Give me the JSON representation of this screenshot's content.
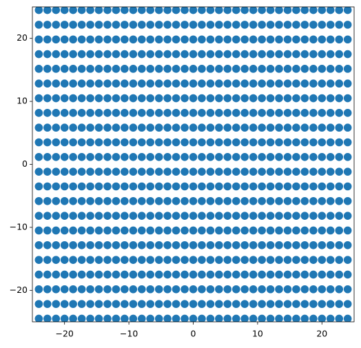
{
  "chart_data": {
    "type": "scatter",
    "color": "#1f77b4",
    "x": [
      -24,
      -22.67,
      -21.33,
      -20,
      -18.67,
      -17.33,
      -16,
      -14.67,
      -13.33,
      -12,
      -10.67,
      -9.33,
      -8,
      -6.67,
      -5.33,
      -4,
      -2.67,
      -1.33,
      0,
      1.33,
      2.67,
      4,
      5.33,
      6.67,
      8,
      9.33,
      10.67,
      12,
      13.33,
      14.67,
      16,
      17.33,
      18.67,
      20,
      21.33,
      22.67,
      24
    ],
    "series": [
      {
        "values": [
          -24.5,
          -24.5,
          -24.5,
          -24.5,
          -24.5,
          -24.5,
          -24.5,
          -24.5,
          -24.5,
          -24.5,
          -24.5,
          -24.5,
          -24.5,
          -24.5,
          -24.5,
          -24.5,
          -24.5,
          -24.5,
          -24.5,
          -24.5,
          -24.5,
          -24.5,
          -24.5,
          -24.5,
          -24.5,
          -24.5,
          -24.5,
          -24.5,
          -24.5,
          -24.5,
          -24.5,
          -24.5,
          -24.5,
          -24.5,
          -24.5,
          -24.5,
          -24.5
        ]
      },
      {
        "values": [
          -22.17,
          -22.17,
          -22.17,
          -22.17,
          -22.17,
          -22.17,
          -22.17,
          -22.17,
          -22.17,
          -22.17,
          -22.17,
          -22.17,
          -22.17,
          -22.17,
          -22.17,
          -22.17,
          -22.17,
          -22.17,
          -22.17,
          -22.17,
          -22.17,
          -22.17,
          -22.17,
          -22.17,
          -22.17,
          -22.17,
          -22.17,
          -22.17,
          -22.17,
          -22.17,
          -22.17,
          -22.17,
          -22.17,
          -22.17,
          -22.17,
          -22.17,
          -22.17
        ]
      },
      {
        "values": [
          -19.83,
          -19.83,
          -19.83,
          -19.83,
          -19.83,
          -19.83,
          -19.83,
          -19.83,
          -19.83,
          -19.83,
          -19.83,
          -19.83,
          -19.83,
          -19.83,
          -19.83,
          -19.83,
          -19.83,
          -19.83,
          -19.83,
          -19.83,
          -19.83,
          -19.83,
          -19.83,
          -19.83,
          -19.83,
          -19.83,
          -19.83,
          -19.83,
          -19.83,
          -19.83,
          -19.83,
          -19.83,
          -19.83,
          -19.83,
          -19.83,
          -19.83,
          -19.83
        ]
      },
      {
        "values": [
          -17.5,
          -17.5,
          -17.5,
          -17.5,
          -17.5,
          -17.5,
          -17.5,
          -17.5,
          -17.5,
          -17.5,
          -17.5,
          -17.5,
          -17.5,
          -17.5,
          -17.5,
          -17.5,
          -17.5,
          -17.5,
          -17.5,
          -17.5,
          -17.5,
          -17.5,
          -17.5,
          -17.5,
          -17.5,
          -17.5,
          -17.5,
          -17.5,
          -17.5,
          -17.5,
          -17.5,
          -17.5,
          -17.5,
          -17.5,
          -17.5,
          -17.5,
          -17.5
        ]
      },
      {
        "values": [
          -15.17,
          -15.17,
          -15.17,
          -15.17,
          -15.17,
          -15.17,
          -15.17,
          -15.17,
          -15.17,
          -15.17,
          -15.17,
          -15.17,
          -15.17,
          -15.17,
          -15.17,
          -15.17,
          -15.17,
          -15.17,
          -15.17,
          -15.17,
          -15.17,
          -15.17,
          -15.17,
          -15.17,
          -15.17,
          -15.17,
          -15.17,
          -15.17,
          -15.17,
          -15.17,
          -15.17,
          -15.17,
          -15.17,
          -15.17,
          -15.17,
          -15.17,
          -15.17
        ]
      },
      {
        "values": [
          -12.83,
          -12.83,
          -12.83,
          -12.83,
          -12.83,
          -12.83,
          -12.83,
          -12.83,
          -12.83,
          -12.83,
          -12.83,
          -12.83,
          -12.83,
          -12.83,
          -12.83,
          -12.83,
          -12.83,
          -12.83,
          -12.83,
          -12.83,
          -12.83,
          -12.83,
          -12.83,
          -12.83,
          -12.83,
          -12.83,
          -12.83,
          -12.83,
          -12.83,
          -12.83,
          -12.83,
          -12.83,
          -12.83,
          -12.83,
          -12.83,
          -12.83,
          -12.83
        ]
      },
      {
        "values": [
          -10.5,
          -10.5,
          -10.5,
          -10.5,
          -10.5,
          -10.5,
          -10.5,
          -10.5,
          -10.5,
          -10.5,
          -10.5,
          -10.5,
          -10.5,
          -10.5,
          -10.5,
          -10.5,
          -10.5,
          -10.5,
          -10.5,
          -10.5,
          -10.5,
          -10.5,
          -10.5,
          -10.5,
          -10.5,
          -10.5,
          -10.5,
          -10.5,
          -10.5,
          -10.5,
          -10.5,
          -10.5,
          -10.5,
          -10.5,
          -10.5,
          -10.5,
          -10.5
        ]
      },
      {
        "values": [
          -8.17,
          -8.17,
          -8.17,
          -8.17,
          -8.17,
          -8.17,
          -8.17,
          -8.17,
          -8.17,
          -8.17,
          -8.17,
          -8.17,
          -8.17,
          -8.17,
          -8.17,
          -8.17,
          -8.17,
          -8.17,
          -8.17,
          -8.17,
          -8.17,
          -8.17,
          -8.17,
          -8.17,
          -8.17,
          -8.17,
          -8.17,
          -8.17,
          -8.17,
          -8.17,
          -8.17,
          -8.17,
          -8.17,
          -8.17,
          -8.17,
          -8.17,
          -8.17
        ]
      },
      {
        "values": [
          -5.83,
          -5.83,
          -5.83,
          -5.83,
          -5.83,
          -5.83,
          -5.83,
          -5.83,
          -5.83,
          -5.83,
          -5.83,
          -5.83,
          -5.83,
          -5.83,
          -5.83,
          -5.83,
          -5.83,
          -5.83,
          -5.83,
          -5.83,
          -5.83,
          -5.83,
          -5.83,
          -5.83,
          -5.83,
          -5.83,
          -5.83,
          -5.83,
          -5.83,
          -5.83,
          -5.83,
          -5.83,
          -5.83,
          -5.83,
          -5.83,
          -5.83,
          -5.83
        ]
      },
      {
        "values": [
          -3.5,
          -3.5,
          -3.5,
          -3.5,
          -3.5,
          -3.5,
          -3.5,
          -3.5,
          -3.5,
          -3.5,
          -3.5,
          -3.5,
          -3.5,
          -3.5,
          -3.5,
          -3.5,
          -3.5,
          -3.5,
          -3.5,
          -3.5,
          -3.5,
          -3.5,
          -3.5,
          -3.5,
          -3.5,
          -3.5,
          -3.5,
          -3.5,
          -3.5,
          -3.5,
          -3.5,
          -3.5,
          -3.5,
          -3.5,
          -3.5,
          -3.5,
          -3.5
        ]
      },
      {
        "values": [
          -1.17,
          -1.17,
          -1.17,
          -1.17,
          -1.17,
          -1.17,
          -1.17,
          -1.17,
          -1.17,
          -1.17,
          -1.17,
          -1.17,
          -1.17,
          -1.17,
          -1.17,
          -1.17,
          -1.17,
          -1.17,
          -1.17,
          -1.17,
          -1.17,
          -1.17,
          -1.17,
          -1.17,
          -1.17,
          -1.17,
          -1.17,
          -1.17,
          -1.17,
          -1.17,
          -1.17,
          -1.17,
          -1.17,
          -1.17,
          -1.17,
          -1.17,
          -1.17
        ]
      },
      {
        "values": [
          1.17,
          1.17,
          1.17,
          1.17,
          1.17,
          1.17,
          1.17,
          1.17,
          1.17,
          1.17,
          1.17,
          1.17,
          1.17,
          1.17,
          1.17,
          1.17,
          1.17,
          1.17,
          1.17,
          1.17,
          1.17,
          1.17,
          1.17,
          1.17,
          1.17,
          1.17,
          1.17,
          1.17,
          1.17,
          1.17,
          1.17,
          1.17,
          1.17,
          1.17,
          1.17,
          1.17,
          1.17
        ]
      },
      {
        "values": [
          3.5,
          3.5,
          3.5,
          3.5,
          3.5,
          3.5,
          3.5,
          3.5,
          3.5,
          3.5,
          3.5,
          3.5,
          3.5,
          3.5,
          3.5,
          3.5,
          3.5,
          3.5,
          3.5,
          3.5,
          3.5,
          3.5,
          3.5,
          3.5,
          3.5,
          3.5,
          3.5,
          3.5,
          3.5,
          3.5,
          3.5,
          3.5,
          3.5,
          3.5,
          3.5,
          3.5,
          3.5
        ]
      },
      {
        "values": [
          5.83,
          5.83,
          5.83,
          5.83,
          5.83,
          5.83,
          5.83,
          5.83,
          5.83,
          5.83,
          5.83,
          5.83,
          5.83,
          5.83,
          5.83,
          5.83,
          5.83,
          5.83,
          5.83,
          5.83,
          5.83,
          5.83,
          5.83,
          5.83,
          5.83,
          5.83,
          5.83,
          5.83,
          5.83,
          5.83,
          5.83,
          5.83,
          5.83,
          5.83,
          5.83,
          5.83,
          5.83
        ]
      },
      {
        "values": [
          8.17,
          8.17,
          8.17,
          8.17,
          8.17,
          8.17,
          8.17,
          8.17,
          8.17,
          8.17,
          8.17,
          8.17,
          8.17,
          8.17,
          8.17,
          8.17,
          8.17,
          8.17,
          8.17,
          8.17,
          8.17,
          8.17,
          8.17,
          8.17,
          8.17,
          8.17,
          8.17,
          8.17,
          8.17,
          8.17,
          8.17,
          8.17,
          8.17,
          8.17,
          8.17,
          8.17,
          8.17
        ]
      },
      {
        "values": [
          10.5,
          10.5,
          10.5,
          10.5,
          10.5,
          10.5,
          10.5,
          10.5,
          10.5,
          10.5,
          10.5,
          10.5,
          10.5,
          10.5,
          10.5,
          10.5,
          10.5,
          10.5,
          10.5,
          10.5,
          10.5,
          10.5,
          10.5,
          10.5,
          10.5,
          10.5,
          10.5,
          10.5,
          10.5,
          10.5,
          10.5,
          10.5,
          10.5,
          10.5,
          10.5,
          10.5,
          10.5
        ]
      },
      {
        "values": [
          12.83,
          12.83,
          12.83,
          12.83,
          12.83,
          12.83,
          12.83,
          12.83,
          12.83,
          12.83,
          12.83,
          12.83,
          12.83,
          12.83,
          12.83,
          12.83,
          12.83,
          12.83,
          12.83,
          12.83,
          12.83,
          12.83,
          12.83,
          12.83,
          12.83,
          12.83,
          12.83,
          12.83,
          12.83,
          12.83,
          12.83,
          12.83,
          12.83,
          12.83,
          12.83,
          12.83,
          12.83
        ]
      },
      {
        "values": [
          15.17,
          15.17,
          15.17,
          15.17,
          15.17,
          15.17,
          15.17,
          15.17,
          15.17,
          15.17,
          15.17,
          15.17,
          15.17,
          15.17,
          15.17,
          15.17,
          15.17,
          15.17,
          15.17,
          15.17,
          15.17,
          15.17,
          15.17,
          15.17,
          15.17,
          15.17,
          15.17,
          15.17,
          15.17,
          15.17,
          15.17,
          15.17,
          15.17,
          15.17,
          15.17,
          15.17,
          15.17
        ]
      },
      {
        "values": [
          17.5,
          17.5,
          17.5,
          17.5,
          17.5,
          17.5,
          17.5,
          17.5,
          17.5,
          17.5,
          17.5,
          17.5,
          17.5,
          17.5,
          17.5,
          17.5,
          17.5,
          17.5,
          17.5,
          17.5,
          17.5,
          17.5,
          17.5,
          17.5,
          17.5,
          17.5,
          17.5,
          17.5,
          17.5,
          17.5,
          17.5,
          17.5,
          17.5,
          17.5,
          17.5,
          17.5,
          17.5
        ]
      },
      {
        "values": [
          19.83,
          19.83,
          19.83,
          19.83,
          19.83,
          19.83,
          19.83,
          19.83,
          19.83,
          19.83,
          19.83,
          19.83,
          19.83,
          19.83,
          19.83,
          19.83,
          19.83,
          19.83,
          19.83,
          19.83,
          19.83,
          19.83,
          19.83,
          19.83,
          19.83,
          19.83,
          19.83,
          19.83,
          19.83,
          19.83,
          19.83,
          19.83,
          19.83,
          19.83,
          19.83,
          19.83,
          19.83
        ]
      },
      {
        "values": [
          22.17,
          22.17,
          22.17,
          22.17,
          22.17,
          22.17,
          22.17,
          22.17,
          22.17,
          22.17,
          22.17,
          22.17,
          22.17,
          22.17,
          22.17,
          22.17,
          22.17,
          22.17,
          22.17,
          22.17,
          22.17,
          22.17,
          22.17,
          22.17,
          22.17,
          22.17,
          22.17,
          22.17,
          22.17,
          22.17,
          22.17,
          22.17,
          22.17,
          22.17,
          22.17,
          22.17,
          22.17
        ]
      },
      {
        "values": [
          24.5,
          24.5,
          24.5,
          24.5,
          24.5,
          24.5,
          24.5,
          24.5,
          24.5,
          24.5,
          24.5,
          24.5,
          24.5,
          24.5,
          24.5,
          24.5,
          24.5,
          24.5,
          24.5,
          24.5,
          24.5,
          24.5,
          24.5,
          24.5,
          24.5,
          24.5,
          24.5,
          24.5,
          24.5,
          24.5,
          24.5,
          24.5,
          24.5,
          24.5,
          24.5,
          24.5,
          24.5
        ]
      }
    ],
    "xlim": [
      -25,
      25
    ],
    "ylim": [
      -25,
      25
    ],
    "xticks": [
      {
        "value": -20,
        "label": "−20"
      },
      {
        "value": -10,
        "label": "−10"
      },
      0,
      10,
      20
    ],
    "yticks": [
      {
        "value": -20,
        "label": "−20"
      },
      {
        "value": -10,
        "label": "−10"
      },
      0,
      10,
      20
    ]
  }
}
